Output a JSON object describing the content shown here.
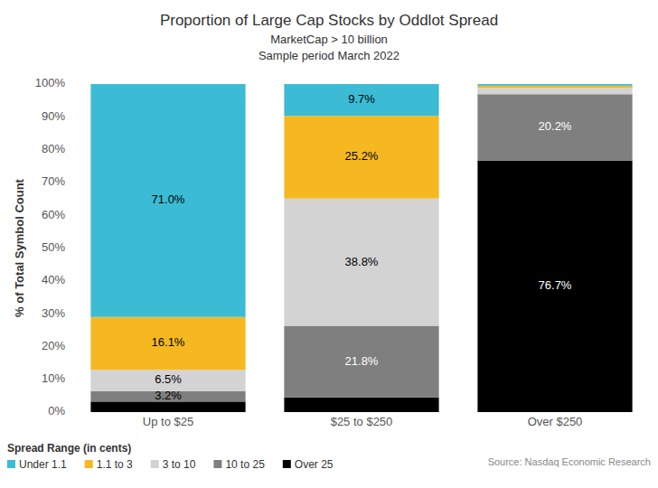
{
  "chart_data": {
    "type": "bar",
    "stacked": true,
    "data_labels": true,
    "title": "Proportion of Large Cap Stocks by Oddlot Spread",
    "subtitle": [
      "MarketCap > 10 billion",
      "Sample period March 2022"
    ],
    "y_label": "% of Total Symbol Count",
    "legend_title": "Spread Range (in cents)",
    "legend": "bottom-left",
    "source": "Source: Nasdaq Economic Research",
    "categories": [
      "Up to $25",
      "$25 to $250",
      "Over $250"
    ],
    "ylim": [
      0,
      100
    ],
    "yticks": [
      {
        "value": 0,
        "label": "0%"
      },
      {
        "value": 10,
        "label": "10%"
      },
      {
        "value": 20,
        "label": "20%"
      },
      {
        "value": 30,
        "label": "30%"
      },
      {
        "value": 40,
        "label": "40%"
      },
      {
        "value": 50,
        "label": "50%"
      },
      {
        "value": 60,
        "label": "60%"
      },
      {
        "value": 70,
        "label": "70%"
      },
      {
        "value": 80,
        "label": "80%"
      },
      {
        "value": 90,
        "label": "90%"
      },
      {
        "value": 100,
        "label": "100%"
      }
    ],
    "grid": false,
    "series": [
      {
        "name": "Over 25",
        "color": "#000000",
        "values": [
          3.2,
          4.5,
          76.7
        ],
        "value_labels": [
          null,
          null,
          "76.7%"
        ]
      },
      {
        "name": "10 to 25",
        "color": "#7f7f7f",
        "values": [
          3.2,
          21.8,
          20.2
        ],
        "value_labels": [
          "3.2%",
          "21.8%",
          "20.2%"
        ]
      },
      {
        "name": "3 to 10",
        "color": "#d3d3d3",
        "values": [
          6.5,
          38.8,
          1.9
        ],
        "value_labels": [
          "6.5%",
          "38.8%",
          null
        ]
      },
      {
        "name": "1.1 to 3",
        "color": "#f5b820",
        "values": [
          16.1,
          25.2,
          0.7
        ],
        "value_labels": [
          "16.1%",
          "25.2%",
          null
        ]
      },
      {
        "name": "Under 1.1",
        "color": "#3bbcd4",
        "values": [
          71.0,
          9.7,
          0.5
        ],
        "value_labels": [
          "71.0%",
          "9.7%",
          null
        ]
      }
    ]
  }
}
